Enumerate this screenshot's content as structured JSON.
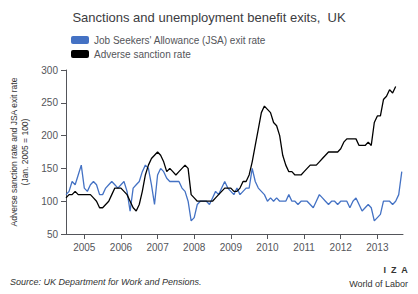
{
  "chart_data": {
    "type": "line",
    "title": "Sanctions and unemployment benefit exits,  UK",
    "y_label": "Adverse sanction rate and JSA exit rate\n(Jan. 2005 = 100)",
    "annotations": [
      "Source: UK Department for Work and Pensions.",
      "I  Z  A",
      "World of Labor"
    ],
    "xlim": [
      2004.5,
      2013.7
    ],
    "xticks": [
      2005,
      2006,
      2007,
      2008,
      2009,
      2010,
      2011,
      2012,
      2013
    ],
    "ylim": [
      50,
      300
    ],
    "yticks": [
      50,
      100,
      150,
      200,
      250,
      300
    ],
    "grid": false,
    "legend": "upper left",
    "series": [
      {
        "name": "Job Seekers' Allowance (JSA) exit rate",
        "color": "#4472C4",
        "x": [
          2004.5,
          2004.5833333333,
          2004.6666666667,
          2004.75,
          2004.8333333333,
          2004.9166666667,
          2005,
          2005.0833333333,
          2005.1666666667,
          2005.25,
          2005.3333333333,
          2005.4166666667,
          2005.5,
          2005.5833333333,
          2005.6666666667,
          2005.75,
          2005.8333333333,
          2005.9166666667,
          2006,
          2006.0833333333,
          2006.1666666667,
          2006.25,
          2006.3333333333,
          2006.4166666667,
          2006.5,
          2006.5833333333,
          2006.6666666667,
          2006.75,
          2006.8333333333,
          2006.9166666667,
          2007,
          2007.0833333333,
          2007.1666666667,
          2007.25,
          2007.3333333333,
          2007.4166666667,
          2007.5,
          2007.5833333333,
          2007.6666666667,
          2007.75,
          2007.8333333333,
          2007.9166666667,
          2008,
          2008.0833333333,
          2008.1666666667,
          2008.25,
          2008.3333333333,
          2008.4166666667,
          2008.5,
          2008.5833333333,
          2008.6666666667,
          2008.75,
          2008.8333333333,
          2008.9166666667,
          2009,
          2009.0833333333,
          2009.1666666667,
          2009.25,
          2009.3333333333,
          2009.4166666667,
          2009.5,
          2009.5833333333,
          2009.6666666667,
          2009.75,
          2009.8333333333,
          2009.9166666667,
          2010,
          2010.0833333333,
          2010.1666666667,
          2010.25,
          2010.3333333333,
          2010.4166666667,
          2010.5,
          2010.5833333333,
          2010.6666666667,
          2010.75,
          2010.8333333333,
          2010.9166666667,
          2011,
          2011.0833333333,
          2011.1666666667,
          2011.25,
          2011.3333333333,
          2011.4166666667,
          2011.5,
          2011.5833333333,
          2011.6666666667,
          2011.75,
          2011.8333333333,
          2011.9166666667,
          2012,
          2012.0833333333,
          2012.1666666667,
          2012.25,
          2012.3333333333,
          2012.4166666667,
          2012.5,
          2012.5833333333,
          2012.6666666667,
          2012.75,
          2012.8333333333,
          2012.9166666667,
          2013,
          2013.0833333333,
          2013.1666666667,
          2013.25,
          2013.3333333333,
          2013.4166666667,
          2013.5,
          2013.5833333333,
          2013.6666666667
        ],
        "values": [
          110,
          115,
          130,
          125,
          140,
          155,
          120,
          115,
          125,
          130,
          125,
          110,
          110,
          120,
          125,
          130,
          125,
          120,
          125,
          130,
          115,
          85,
          120,
          125,
          130,
          145,
          155,
          150,
          125,
          95,
          140,
          150,
          145,
          135,
          130,
          130,
          130,
          130,
          120,
          115,
          100,
          70,
          75,
          95,
          100,
          100,
          100,
          95,
          105,
          115,
          110,
          120,
          130,
          120,
          115,
          110,
          120,
          110,
          115,
          120,
          120,
          150,
          130,
          120,
          115,
          110,
          100,
          105,
          100,
          105,
          100,
          100,
          100,
          110,
          100,
          100,
          95,
          100,
          100,
          100,
          95,
          90,
          100,
          110,
          105,
          100,
          95,
          100,
          100,
          95,
          100,
          100,
          100,
          90,
          100,
          105,
          95,
          85,
          90,
          95,
          90,
          70,
          75,
          80,
          100,
          100,
          100,
          95,
          100,
          110,
          145
        ]
      },
      {
        "name": "Adverse sanction rate",
        "color": "#000000",
        "x": [
          2004.5,
          2004.5833333333,
          2004.6666666667,
          2004.75,
          2004.8333333333,
          2004.9166666667,
          2005,
          2005.0833333333,
          2005.1666666667,
          2005.25,
          2005.3333333333,
          2005.4166666667,
          2005.5,
          2005.5833333333,
          2005.6666666667,
          2005.75,
          2005.8333333333,
          2005.9166666667,
          2006,
          2006.0833333333,
          2006.1666666667,
          2006.25,
          2006.3333333333,
          2006.4166666667,
          2006.5,
          2006.5833333333,
          2006.6666666667,
          2006.75,
          2006.8333333333,
          2006.9166666667,
          2007,
          2007.0833333333,
          2007.1666666667,
          2007.25,
          2007.3333333333,
          2007.4166666667,
          2007.5,
          2007.5833333333,
          2007.6666666667,
          2007.75,
          2007.8333333333,
          2007.9166666667,
          2008,
          2008.0833333333,
          2008.1666666667,
          2008.25,
          2008.3333333333,
          2008.4166666667,
          2008.5,
          2008.5833333333,
          2008.6666666667,
          2008.75,
          2008.8333333333,
          2008.9166666667,
          2009,
          2009.0833333333,
          2009.1666666667,
          2009.25,
          2009.3333333333,
          2009.4166666667,
          2009.5,
          2009.5833333333,
          2009.6666666667,
          2009.75,
          2009.8333333333,
          2009.9166666667,
          2010,
          2010.0833333333,
          2010.1666666667,
          2010.25,
          2010.3333333333,
          2010.4166666667,
          2010.5,
          2010.5833333333,
          2010.6666666667,
          2010.75,
          2010.8333333333,
          2010.9166666667,
          2011,
          2011.0833333333,
          2011.1666666667,
          2011.25,
          2011.3333333333,
          2011.4166666667,
          2011.5,
          2011.5833333333,
          2011.6666666667,
          2011.75,
          2011.8333333333,
          2011.9166666667,
          2012,
          2012.0833333333,
          2012.1666666667,
          2012.25,
          2012.3333333333,
          2012.4166666667,
          2012.5,
          2012.5833333333,
          2012.6666666667,
          2012.75,
          2012.8333333333,
          2012.9166666667,
          2013,
          2013.0833333333,
          2013.1666666667,
          2013.25,
          2013.3333333333,
          2013.4166666667,
          2013.5
        ],
        "values": [
          105,
          110,
          110,
          115,
          110,
          110,
          110,
          110,
          110,
          105,
          100,
          90,
          90,
          95,
          100,
          110,
          120,
          120,
          120,
          115,
          110,
          100,
          90,
          85,
          95,
          115,
          140,
          155,
          165,
          170,
          175,
          170,
          160,
          145,
          150,
          145,
          140,
          145,
          150,
          155,
          150,
          110,
          105,
          100,
          100,
          100,
          100,
          100,
          100,
          105,
          110,
          115,
          120,
          120,
          120,
          115,
          115,
          120,
          130,
          130,
          140,
          160,
          185,
          210,
          235,
          245,
          240,
          235,
          220,
          215,
          200,
          170,
          155,
          145,
          145,
          140,
          140,
          140,
          145,
          150,
          155,
          155,
          155,
          160,
          165,
          170,
          175,
          175,
          175,
          175,
          180,
          190,
          195,
          195,
          195,
          195,
          185,
          185,
          185,
          190,
          185,
          220,
          230,
          230,
          255,
          260,
          270,
          265,
          275
        ]
      }
    ]
  }
}
